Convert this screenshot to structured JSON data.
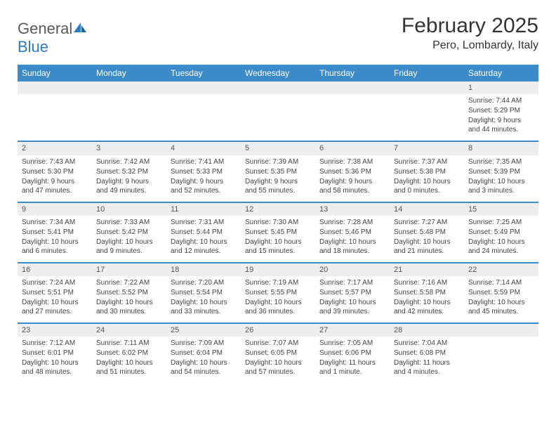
{
  "logo": {
    "text1": "General",
    "text2": "Blue"
  },
  "title": "February 2025",
  "location": "Pero, Lombardy, Italy",
  "colors": {
    "header_bg": "#3b8bc9",
    "header_text": "#ffffff",
    "daynum_bg": "#eeeeee",
    "row_border": "#3b8bc9",
    "body_text": "#444444",
    "title_text": "#333333",
    "logo_gray": "#5a5a5a",
    "logo_blue": "#2e7bc0",
    "page_bg": "#ffffff"
  },
  "typography": {
    "title_fontsize": 30,
    "location_fontsize": 16,
    "header_fontsize": 12,
    "daynum_fontsize": 11,
    "cell_fontsize": 10,
    "font_family": "Arial"
  },
  "day_headers": [
    "Sunday",
    "Monday",
    "Tuesday",
    "Wednesday",
    "Thursday",
    "Friday",
    "Saturday"
  ],
  "weeks": [
    [
      null,
      null,
      null,
      null,
      null,
      null,
      {
        "n": "1",
        "sr": "7:44 AM",
        "ss": "5:29 PM",
        "dl": "9 hours and 44 minutes."
      }
    ],
    [
      {
        "n": "2",
        "sr": "7:43 AM",
        "ss": "5:30 PM",
        "dl": "9 hours and 47 minutes."
      },
      {
        "n": "3",
        "sr": "7:42 AM",
        "ss": "5:32 PM",
        "dl": "9 hours and 49 minutes."
      },
      {
        "n": "4",
        "sr": "7:41 AM",
        "ss": "5:33 PM",
        "dl": "9 hours and 52 minutes."
      },
      {
        "n": "5",
        "sr": "7:39 AM",
        "ss": "5:35 PM",
        "dl": "9 hours and 55 minutes."
      },
      {
        "n": "6",
        "sr": "7:38 AM",
        "ss": "5:36 PM",
        "dl": "9 hours and 58 minutes."
      },
      {
        "n": "7",
        "sr": "7:37 AM",
        "ss": "5:38 PM",
        "dl": "10 hours and 0 minutes."
      },
      {
        "n": "8",
        "sr": "7:35 AM",
        "ss": "5:39 PM",
        "dl": "10 hours and 3 minutes."
      }
    ],
    [
      {
        "n": "9",
        "sr": "7:34 AM",
        "ss": "5:41 PM",
        "dl": "10 hours and 6 minutes."
      },
      {
        "n": "10",
        "sr": "7:33 AM",
        "ss": "5:42 PM",
        "dl": "10 hours and 9 minutes."
      },
      {
        "n": "11",
        "sr": "7:31 AM",
        "ss": "5:44 PM",
        "dl": "10 hours and 12 minutes."
      },
      {
        "n": "12",
        "sr": "7:30 AM",
        "ss": "5:45 PM",
        "dl": "10 hours and 15 minutes."
      },
      {
        "n": "13",
        "sr": "7:28 AM",
        "ss": "5:46 PM",
        "dl": "10 hours and 18 minutes."
      },
      {
        "n": "14",
        "sr": "7:27 AM",
        "ss": "5:48 PM",
        "dl": "10 hours and 21 minutes."
      },
      {
        "n": "15",
        "sr": "7:25 AM",
        "ss": "5:49 PM",
        "dl": "10 hours and 24 minutes."
      }
    ],
    [
      {
        "n": "16",
        "sr": "7:24 AM",
        "ss": "5:51 PM",
        "dl": "10 hours and 27 minutes."
      },
      {
        "n": "17",
        "sr": "7:22 AM",
        "ss": "5:52 PM",
        "dl": "10 hours and 30 minutes."
      },
      {
        "n": "18",
        "sr": "7:20 AM",
        "ss": "5:54 PM",
        "dl": "10 hours and 33 minutes."
      },
      {
        "n": "19",
        "sr": "7:19 AM",
        "ss": "5:55 PM",
        "dl": "10 hours and 36 minutes."
      },
      {
        "n": "20",
        "sr": "7:17 AM",
        "ss": "5:57 PM",
        "dl": "10 hours and 39 minutes."
      },
      {
        "n": "21",
        "sr": "7:16 AM",
        "ss": "5:58 PM",
        "dl": "10 hours and 42 minutes."
      },
      {
        "n": "22",
        "sr": "7:14 AM",
        "ss": "5:59 PM",
        "dl": "10 hours and 45 minutes."
      }
    ],
    [
      {
        "n": "23",
        "sr": "7:12 AM",
        "ss": "6:01 PM",
        "dl": "10 hours and 48 minutes."
      },
      {
        "n": "24",
        "sr": "7:11 AM",
        "ss": "6:02 PM",
        "dl": "10 hours and 51 minutes."
      },
      {
        "n": "25",
        "sr": "7:09 AM",
        "ss": "6:04 PM",
        "dl": "10 hours and 54 minutes."
      },
      {
        "n": "26",
        "sr": "7:07 AM",
        "ss": "6:05 PM",
        "dl": "10 hours and 57 minutes."
      },
      {
        "n": "27",
        "sr": "7:05 AM",
        "ss": "6:06 PM",
        "dl": "11 hours and 1 minute."
      },
      {
        "n": "28",
        "sr": "7:04 AM",
        "ss": "6:08 PM",
        "dl": "11 hours and 4 minutes."
      },
      null
    ]
  ],
  "labels": {
    "sunrise": "Sunrise:",
    "sunset": "Sunset:",
    "daylight": "Daylight:"
  }
}
